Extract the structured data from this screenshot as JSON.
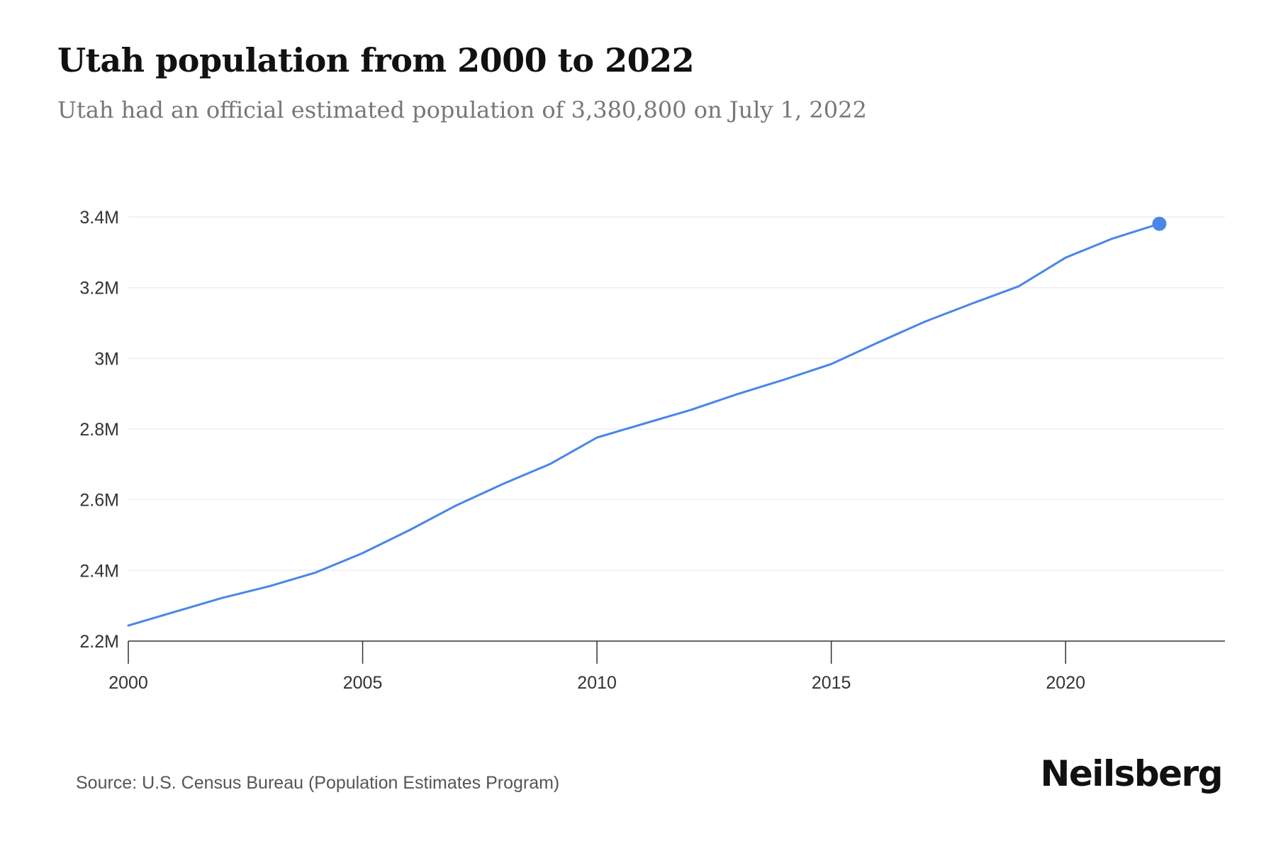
{
  "header": {
    "title": "Utah population from 2000 to 2022",
    "subtitle": "Utah had an official estimated population of 3,380,800 on July 1, 2022"
  },
  "footer": {
    "source": "Source: U.S. Census Bureau (Population Estimates Program)",
    "brand": "Neilsberg"
  },
  "colors": {
    "line": "#4a86e8",
    "grid": "#eeeeee",
    "axis": "#333333"
  },
  "chart_data": {
    "type": "line",
    "title": "Utah population from 2000 to 2022",
    "xlabel": "",
    "ylabel": "",
    "x": [
      2000,
      2001,
      2002,
      2003,
      2004,
      2005,
      2006,
      2007,
      2008,
      2009,
      2010,
      2011,
      2012,
      2013,
      2014,
      2015,
      2016,
      2017,
      2018,
      2019,
      2020,
      2021,
      2022
    ],
    "series": [
      {
        "name": "Population",
        "values": [
          2244000,
          2283000,
          2322000,
          2355000,
          2394000,
          2449000,
          2514000,
          2584000,
          2645000,
          2701000,
          2776000,
          2815000,
          2854000,
          2899000,
          2940000,
          2984000,
          3045000,
          3104000,
          3155000,
          3204000,
          3285000,
          3339000,
          3380800
        ]
      }
    ],
    "ylim": [
      2200000,
      3400000
    ],
    "xlim": [
      2000,
      2023.4
    ],
    "y_ticks": [
      2200000,
      2400000,
      2600000,
      2800000,
      3000000,
      3200000,
      3400000
    ],
    "y_tick_labels": [
      "2.2M",
      "2.4M",
      "2.6M",
      "2.8M",
      "3M",
      "3.2M",
      "3.4M"
    ],
    "x_ticks": [
      2000,
      2005,
      2010,
      2015,
      2020
    ],
    "x_tick_labels": [
      "2000",
      "2005",
      "2010",
      "2015",
      "2020"
    ],
    "grid": true,
    "highlight_last_point": true
  }
}
